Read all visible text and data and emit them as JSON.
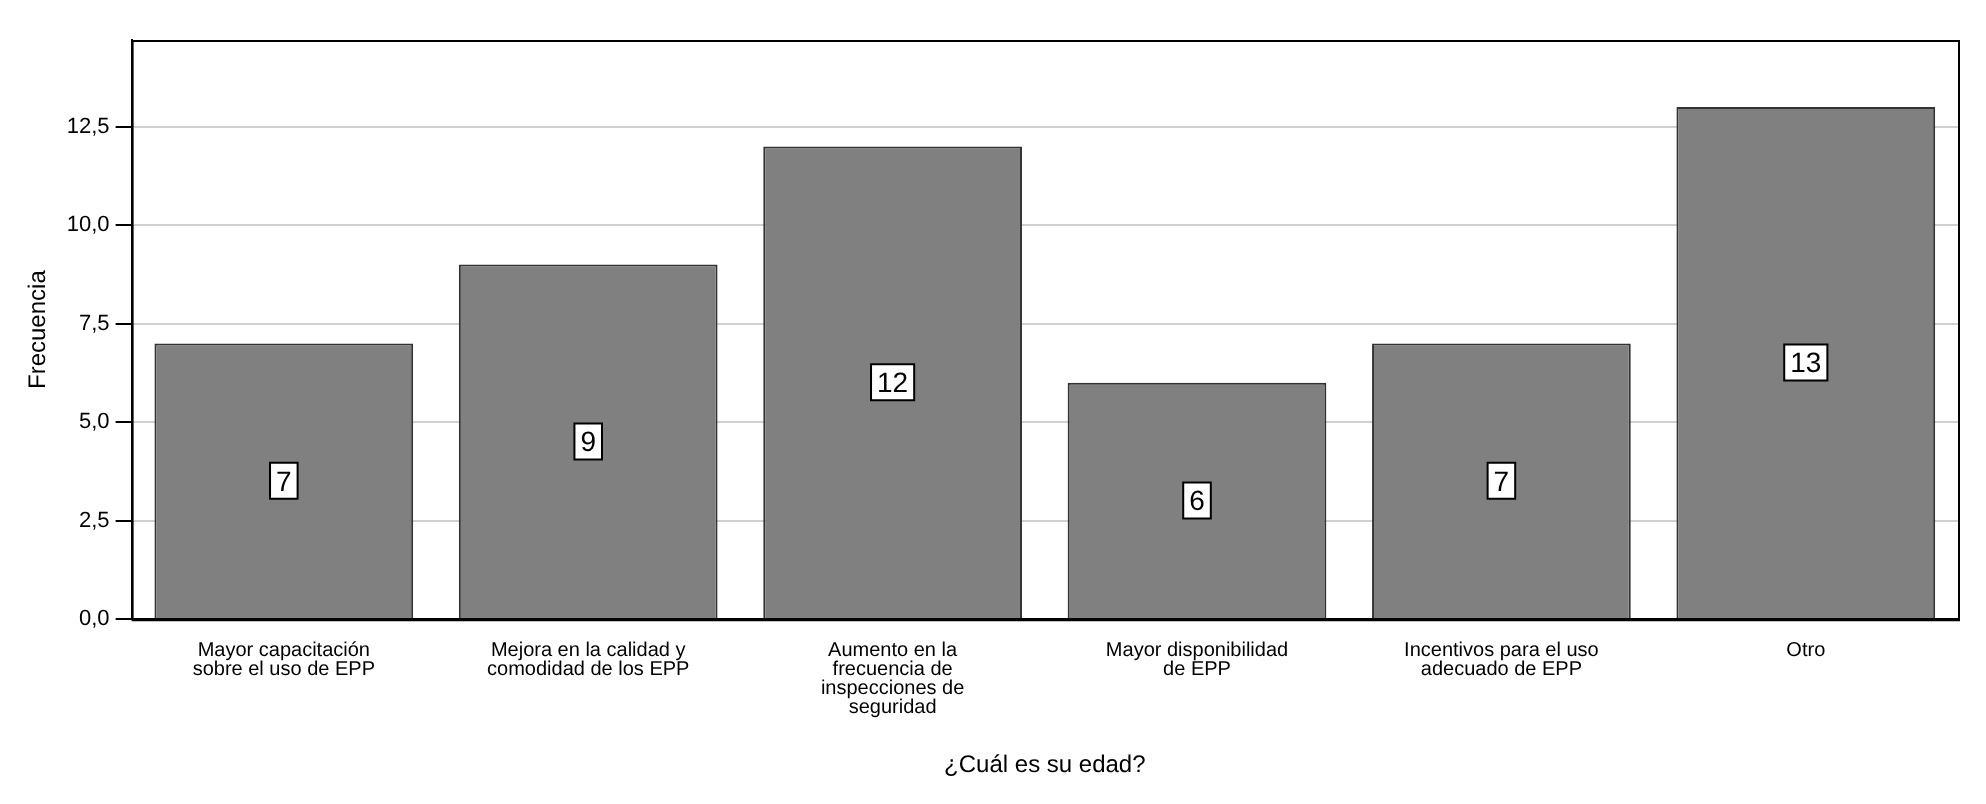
{
  "chart_data": {
    "type": "bar",
    "xlabel": "¿Cuál es su edad?",
    "ylabel": "Frecuencia",
    "categories": [
      "Mayor capacitación sobre el uso de EPP",
      "Mejora en la calidad y comodidad de los EPP",
      "Aumento en la frecuencia de inspecciones de seguridad",
      "Mayor disponibilidad de EPP",
      "Incentivos para el uso adecuado de EPP",
      "Otro"
    ],
    "values": [
      7,
      9,
      12,
      6,
      7,
      13
    ],
    "color": "#808080",
    "ylim": [
      0,
      14.7
    ],
    "yticks": [
      {
        "value": 0,
        "label": "0,0"
      },
      {
        "value": 2.5,
        "label": "2,5"
      },
      {
        "value": 5,
        "label": "5,0"
      },
      {
        "value": 7.5,
        "label": "7,5"
      },
      {
        "value": 10,
        "label": "10,0"
      },
      {
        "value": 12.5,
        "label": "12,5"
      }
    ],
    "grid": "y",
    "data_labels": true,
    "legend": false
  }
}
